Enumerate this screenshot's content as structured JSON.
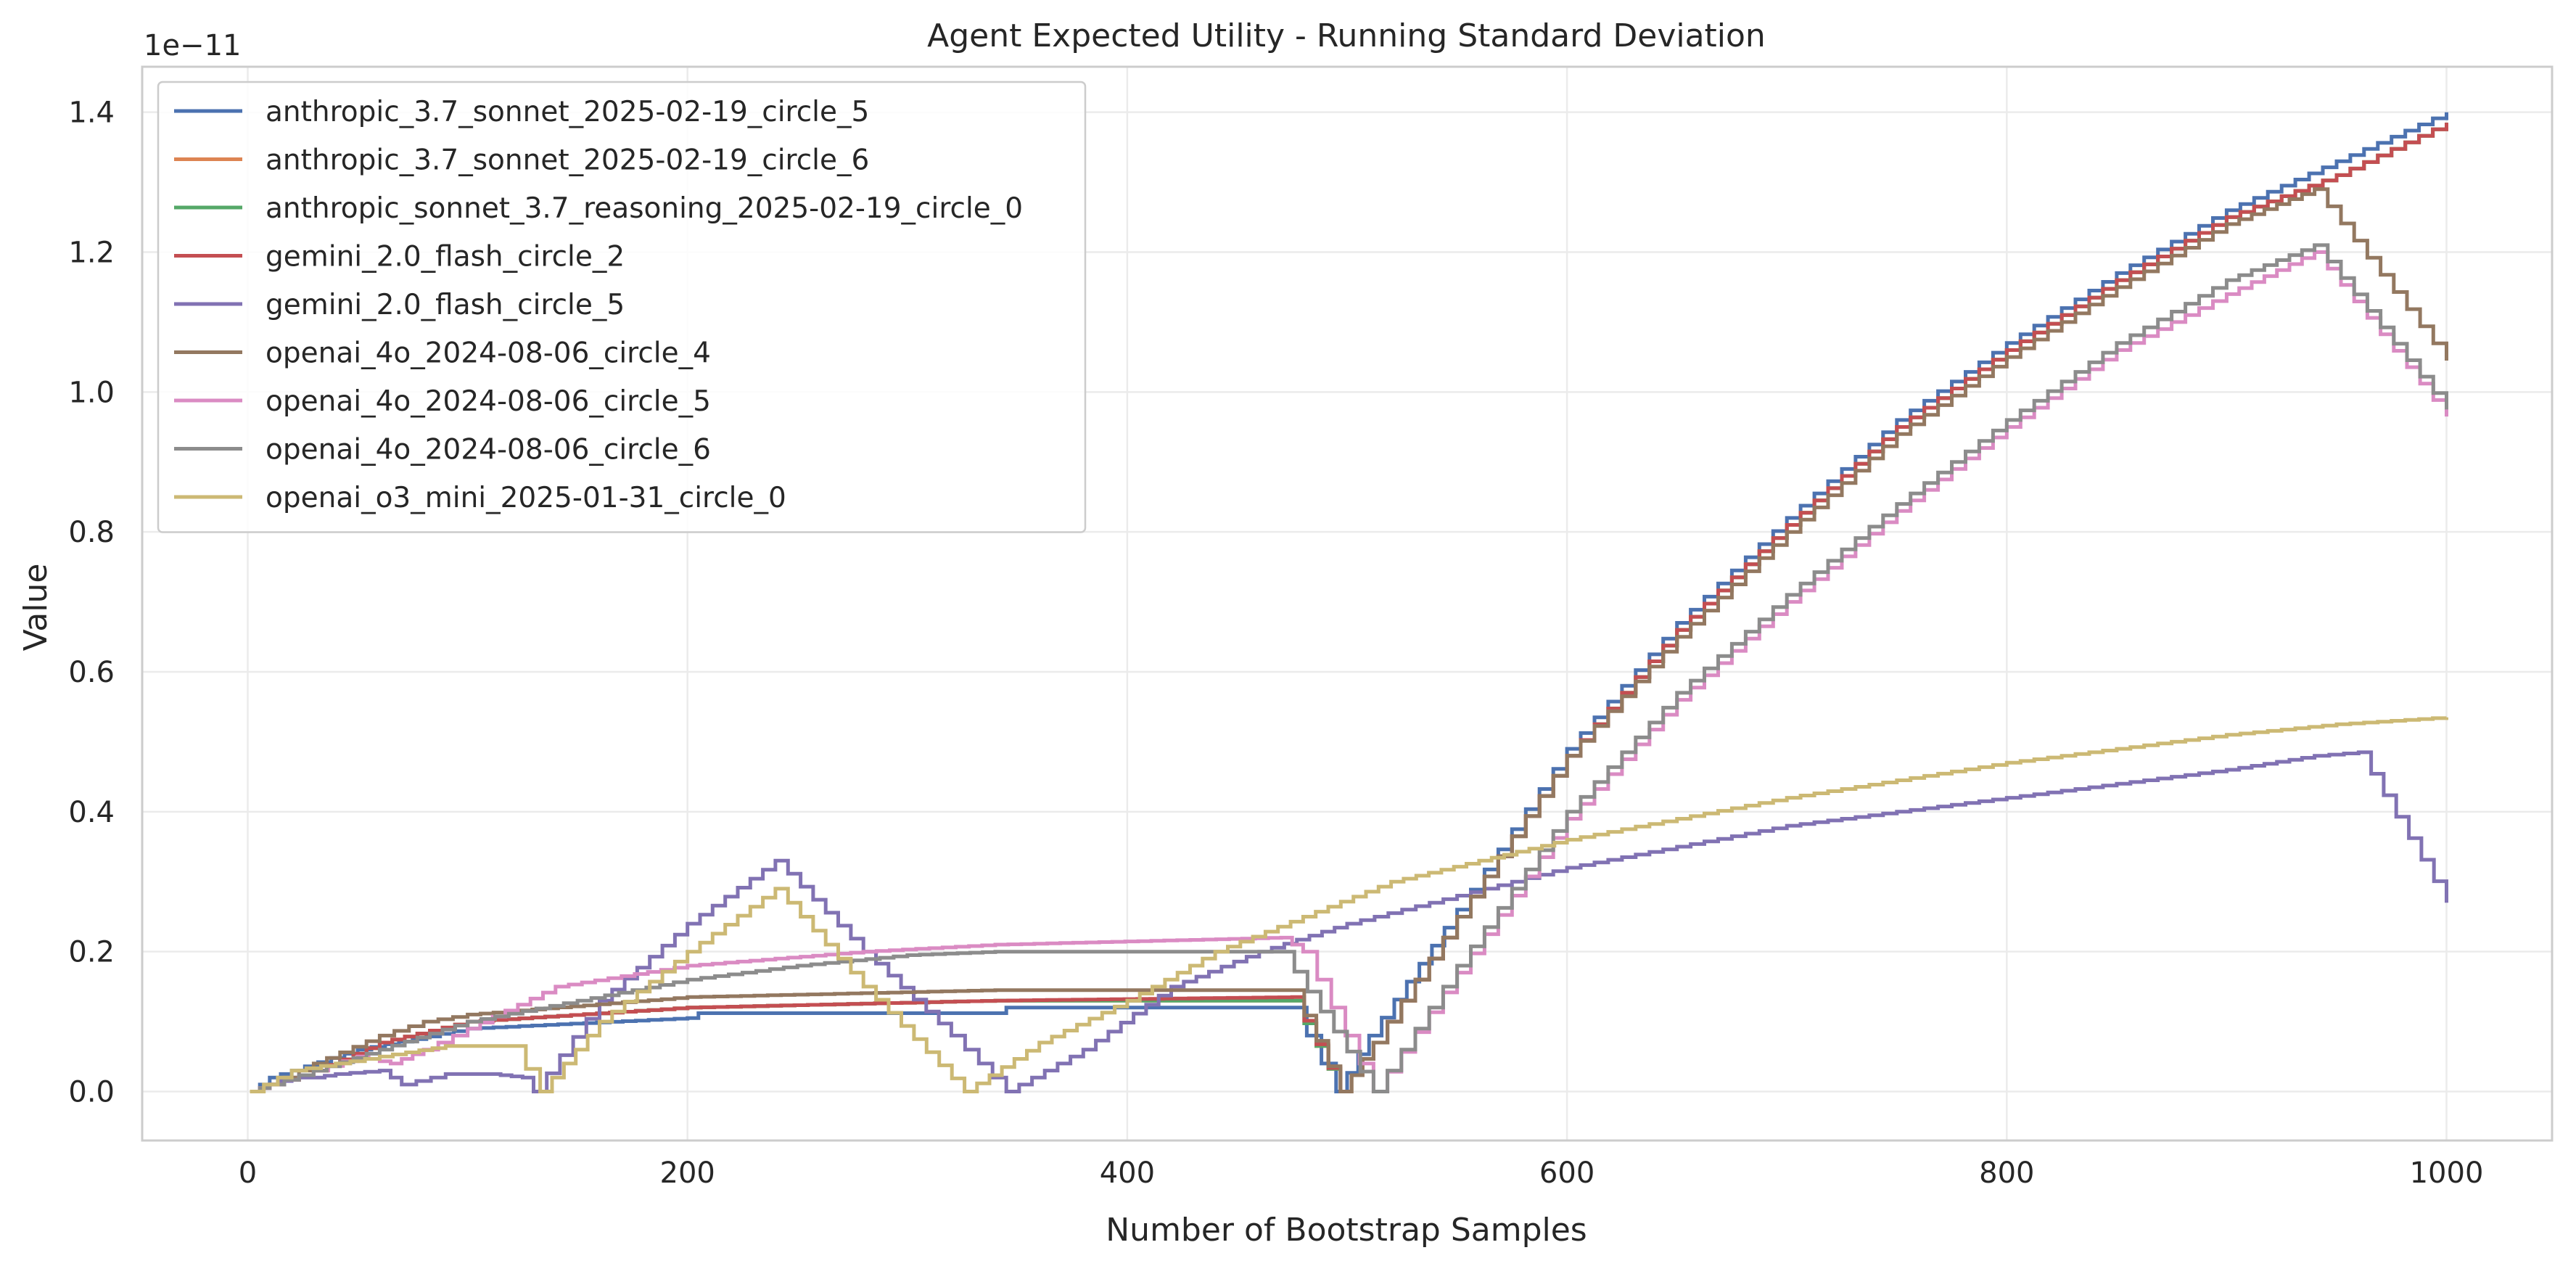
{
  "chart_data": {
    "type": "line",
    "title": "Agent Expected Utility - Running Standard Deviation",
    "xlabel": "Number of Bootstrap Samples",
    "ylabel": "Value",
    "y_offset_label": "1e−11",
    "xlim": [
      -48,
      1048
    ],
    "ylim": [
      -0.07,
      1.465
    ],
    "x_ticks": [
      0,
      200,
      400,
      600,
      800,
      1000
    ],
    "x_tick_labels": [
      "0",
      "200",
      "400",
      "600",
      "800",
      "1000"
    ],
    "y_ticks": [
      0.0,
      0.2,
      0.4,
      0.6,
      0.8,
      1.0,
      1.2,
      1.4
    ],
    "y_tick_labels": [
      "0.0",
      "0.2",
      "0.4",
      "0.6",
      "0.8",
      "1.0",
      "1.2",
      "1.4"
    ],
    "grid": true,
    "legend_position": "top-left",
    "step_lines": true,
    "series": [
      {
        "name": "anthropic_3.7_sonnet_2025-02-19_circle_5",
        "color": "#4c72b0",
        "x": [
          1,
          10,
          20,
          50,
          100,
          200,
          205,
          340,
          345,
          470,
          475,
          495,
          510,
          550,
          600,
          650,
          700,
          750,
          800,
          850,
          900,
          950,
          1000
        ],
        "y": [
          0,
          0.02,
          0.03,
          0.06,
          0.09,
          0.105,
          0.112,
          0.112,
          0.12,
          0.12,
          0.12,
          0,
          0.08,
          0.26,
          0.49,
          0.67,
          0.82,
          0.96,
          1.07,
          1.17,
          1.26,
          1.33,
          1.4
        ]
      },
      {
        "name": "anthropic_3.7_sonnet_2025-02-19_circle_6",
        "color": "#dd8452",
        "x": [
          1,
          10,
          30,
          60,
          100,
          200,
          340,
          475,
          497,
          512,
          550,
          600,
          650,
          700,
          750,
          800,
          850,
          900,
          950,
          1000
        ],
        "y": [
          0,
          0.01,
          0.03,
          0.07,
          0.1,
          0.12,
          0.13,
          0.13,
          0,
          0.07,
          0.25,
          0.48,
          0.66,
          0.81,
          0.95,
          1.06,
          1.16,
          1.25,
          1.31,
          1.385
        ]
      },
      {
        "name": "anthropic_sonnet_3.7_reasoning_2025-02-19_circle_0",
        "color": "#55a868",
        "x": [
          1,
          10,
          30,
          60,
          100,
          200,
          340,
          475,
          497,
          512,
          550,
          600,
          650,
          700,
          750,
          800,
          850,
          900,
          950,
          1000
        ],
        "y": [
          0,
          0.01,
          0.03,
          0.07,
          0.1,
          0.12,
          0.13,
          0.13,
          0,
          0.07,
          0.25,
          0.48,
          0.66,
          0.81,
          0.95,
          1.06,
          1.16,
          1.25,
          1.31,
          1.385
        ]
      },
      {
        "name": "gemini_2.0_flash_circle_2",
        "color": "#c44e52",
        "x": [
          1,
          10,
          30,
          60,
          100,
          200,
          340,
          475,
          497,
          512,
          550,
          600,
          650,
          700,
          750,
          800,
          850,
          900,
          950,
          1000
        ],
        "y": [
          0,
          0.01,
          0.03,
          0.07,
          0.1,
          0.12,
          0.13,
          0.135,
          0,
          0.07,
          0.25,
          0.48,
          0.66,
          0.81,
          0.95,
          1.06,
          1.16,
          1.25,
          1.31,
          1.385
        ]
      },
      {
        "name": "gemini_2.0_flash_circle_5",
        "color": "#8172b3",
        "x": [
          1,
          10,
          20,
          30,
          40,
          60,
          70,
          90,
          110,
          125,
          130,
          160,
          200,
          240,
          280,
          320,
          345,
          380,
          420,
          460,
          500,
          550,
          600,
          650,
          700,
          750,
          800,
          850,
          900,
          940,
          960,
          1000
        ],
        "y": [
          0,
          0.01,
          0.02,
          0.02,
          0.025,
          0.03,
          0.01,
          0.025,
          0.025,
          0.02,
          0,
          0.13,
          0.24,
          0.33,
          0.2,
          0.08,
          0,
          0.06,
          0.15,
          0.2,
          0.24,
          0.28,
          0.32,
          0.35,
          0.38,
          0.4,
          0.42,
          0.44,
          0.46,
          0.48,
          0.485,
          0.27
        ]
      },
      {
        "name": "openai_4o_2024-08-06_circle_4",
        "color": "#937860",
        "x": [
          1,
          10,
          30,
          60,
          80,
          100,
          200,
          340,
          475,
          497,
          512,
          550,
          600,
          650,
          700,
          750,
          800,
          850,
          900,
          940,
          1000
        ],
        "y": [
          0,
          0.01,
          0.04,
          0.08,
          0.1,
          0.11,
          0.135,
          0.145,
          0.145,
          0,
          0.07,
          0.25,
          0.48,
          0.65,
          0.8,
          0.94,
          1.05,
          1.15,
          1.24,
          1.29,
          1.045
        ]
      },
      {
        "name": "openai_4o_2024-08-06_circle_5",
        "color": "#da8bc3",
        "x": [
          1,
          10,
          30,
          50,
          65,
          80,
          100,
          140,
          200,
          240,
          280,
          340,
          470,
          480,
          512,
          550,
          600,
          650,
          700,
          750,
          800,
          850,
          900,
          940,
          1000
        ],
        "y": [
          0,
          0.01,
          0.03,
          0.05,
          0.04,
          0.06,
          0.09,
          0.15,
          0.18,
          0.19,
          0.2,
          0.21,
          0.22,
          0.2,
          0,
          0.17,
          0.39,
          0.56,
          0.7,
          0.83,
          0.95,
          1.06,
          1.14,
          1.2,
          0.965
        ]
      },
      {
        "name": "openai_4o_2024-08-06_circle_6",
        "color": "#8c8c8c",
        "x": [
          1,
          10,
          30,
          60,
          100,
          150,
          200,
          250,
          300,
          340,
          470,
          512,
          550,
          600,
          650,
          700,
          750,
          800,
          850,
          900,
          940,
          1000
        ],
        "y": [
          0,
          0.01,
          0.03,
          0.06,
          0.1,
          0.13,
          0.16,
          0.18,
          0.195,
          0.2,
          0.2,
          0,
          0.18,
          0.4,
          0.57,
          0.71,
          0.84,
          0.96,
          1.07,
          1.16,
          1.21,
          0.975
        ]
      },
      {
        "name": "openai_o3_mini_2025-01-31_circle_0",
        "color": "#ccb974",
        "x": [
          1,
          20,
          40,
          60,
          90,
          120,
          133,
          160,
          200,
          240,
          280,
          326,
          360,
          400,
          440,
          480,
          520,
          560,
          600,
          650,
          700,
          750,
          800,
          850,
          900,
          950,
          1000
        ],
        "y": [
          0,
          0.03,
          0.04,
          0.05,
          0.065,
          0.065,
          0,
          0.1,
          0.2,
          0.29,
          0.15,
          0,
          0.07,
          0.13,
          0.2,
          0.25,
          0.3,
          0.33,
          0.36,
          0.39,
          0.42,
          0.445,
          0.47,
          0.49,
          0.51,
          0.525,
          0.535
        ]
      }
    ]
  }
}
